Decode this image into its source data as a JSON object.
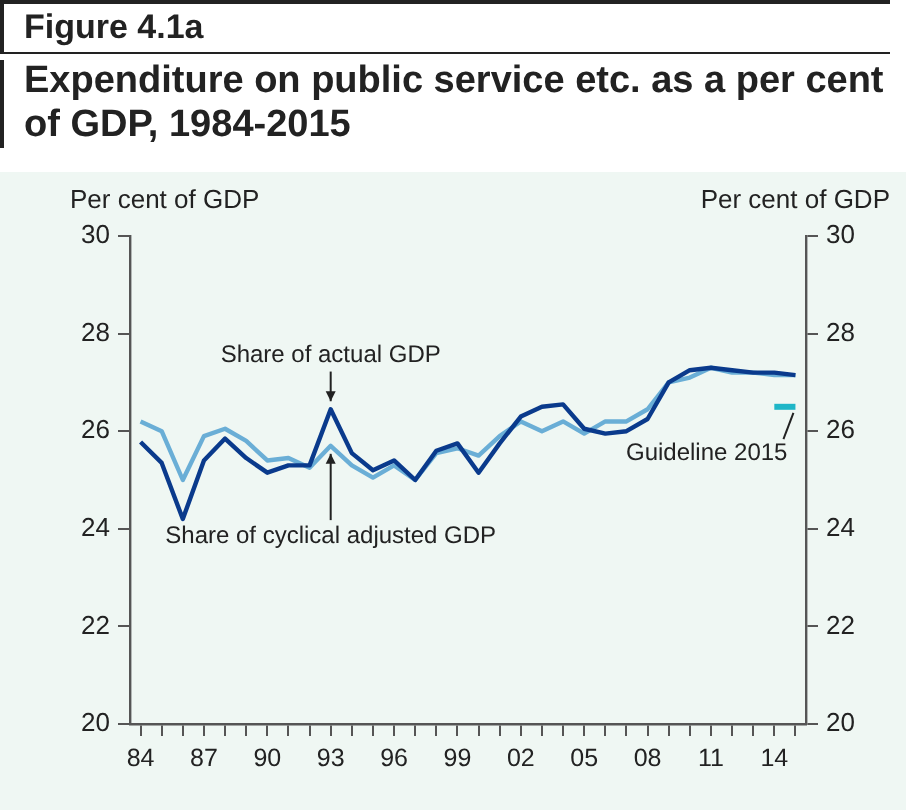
{
  "chart_data": {
    "type": "line",
    "title": "Figure 4.1a",
    "subtitle": "Expenditure on public service etc. as a per cent of GDP, 1984-2015",
    "ylabel": "Per cent of GDP",
    "y2label": "Per cent of GDP",
    "x": [
      1984,
      1985,
      1986,
      1987,
      1988,
      1989,
      1990,
      1991,
      1992,
      1993,
      1994,
      1995,
      1996,
      1997,
      1998,
      1999,
      2000,
      2001,
      2002,
      2003,
      2004,
      2005,
      2006,
      2007,
      2008,
      2009,
      2010,
      2011,
      2012,
      2013,
      2014,
      2015
    ],
    "series": [
      {
        "name": "Share of actual GDP",
        "color": "#0a3a8c",
        "values": [
          25.78,
          25.35,
          24.2,
          25.4,
          25.85,
          25.45,
          25.15,
          25.3,
          25.3,
          26.45,
          25.55,
          25.2,
          25.4,
          25.0,
          25.6,
          25.75,
          25.15,
          25.75,
          26.3,
          26.5,
          26.55,
          26.05,
          25.95,
          26.0,
          26.25,
          27.0,
          27.25,
          27.3,
          27.25,
          27.2,
          27.2,
          27.15
        ]
      },
      {
        "name": "Share of cyclical adjusted GDP",
        "color": "#6aaed6",
        "values": [
          26.2,
          26.0,
          25.0,
          25.9,
          26.05,
          25.8,
          25.4,
          25.45,
          25.25,
          25.7,
          25.3,
          25.05,
          25.3,
          25.0,
          25.55,
          25.65,
          25.5,
          25.9,
          26.2,
          26.0,
          26.2,
          25.95,
          26.2,
          26.2,
          26.45,
          27.0,
          27.1,
          27.3,
          27.2,
          27.2,
          27.15,
          27.15
        ]
      },
      {
        "name": "Guideline 2015",
        "color": "#1fb6c7",
        "x": [
          2014,
          2015
        ],
        "values": [
          26.5,
          26.5
        ]
      }
    ],
    "xlim": [
      1983.5,
      2015.5
    ],
    "xticks": [
      {
        "value": 1984,
        "label": "84"
      },
      {
        "value": 1985,
        "label": null
      },
      {
        "value": 1986,
        "label": null
      },
      {
        "value": 1987,
        "label": "87"
      },
      {
        "value": 1988,
        "label": null
      },
      {
        "value": 1989,
        "label": null
      },
      {
        "value": 1990,
        "label": "90"
      },
      {
        "value": 1991,
        "label": null
      },
      {
        "value": 1992,
        "label": null
      },
      {
        "value": 1993,
        "label": "93"
      },
      {
        "value": 1994,
        "label": null
      },
      {
        "value": 1995,
        "label": null
      },
      {
        "value": 1996,
        "label": "96"
      },
      {
        "value": 1997,
        "label": null
      },
      {
        "value": 1998,
        "label": null
      },
      {
        "value": 1999,
        "label": "99"
      },
      {
        "value": 2000,
        "label": null
      },
      {
        "value": 2001,
        "label": null
      },
      {
        "value": 2002,
        "label": "02"
      },
      {
        "value": 2003,
        "label": null
      },
      {
        "value": 2004,
        "label": null
      },
      {
        "value": 2005,
        "label": "05"
      },
      {
        "value": 2006,
        "label": null
      },
      {
        "value": 2007,
        "label": null
      },
      {
        "value": 2008,
        "label": "08"
      },
      {
        "value": 2009,
        "label": null
      },
      {
        "value": 2010,
        "label": null
      },
      {
        "value": 2011,
        "label": "11"
      },
      {
        "value": 2012,
        "label": null
      },
      {
        "value": 2013,
        "label": null
      },
      {
        "value": 2014,
        "label": "14"
      },
      {
        "value": 2015,
        "label": null
      }
    ],
    "ylim": [
      20,
      30
    ],
    "yticks": [
      20,
      22,
      24,
      26,
      28,
      30
    ],
    "y2lim": [
      20,
      30
    ],
    "y2ticks": [
      20,
      22,
      24,
      26,
      28,
      30
    ],
    "grid": false,
    "legend": false,
    "marker": "none",
    "line_style": "solid"
  }
}
